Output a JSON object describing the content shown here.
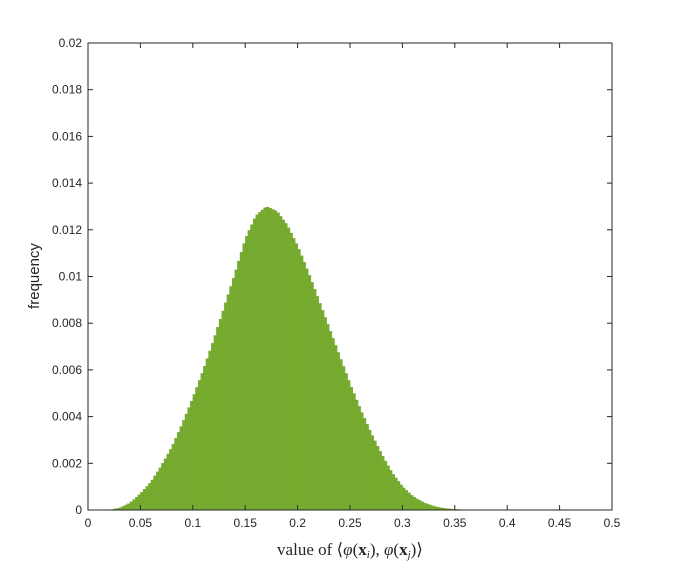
{
  "chart_data": {
    "type": "bar",
    "title": "",
    "ylabel": "frequency",
    "xlabel": {
      "prefix": "value of ",
      "lang": "⟨",
      "phi": "φ",
      "x": "x",
      "sub_i": "i",
      "sub_j": "j",
      "open": "(",
      "close": ")",
      "comma": ", ",
      "rang": "⟩"
    },
    "xlim": [
      0,
      0.5
    ],
    "ylim": [
      0,
      0.02
    ],
    "xticks": [
      "0",
      "0.05",
      "0.1",
      "0.15",
      "0.2",
      "0.25",
      "0.3",
      "0.35",
      "0.4",
      "0.45",
      "0.5"
    ],
    "yticks": [
      "0",
      "0.002",
      "0.004",
      "0.006",
      "0.008",
      "0.01",
      "0.012",
      "0.014",
      "0.016",
      "0.018",
      "0.02"
    ],
    "bar_color": "#77ac30",
    "distribution": {
      "x": [
        0.0,
        0.02,
        0.03,
        0.04,
        0.05,
        0.06,
        0.07,
        0.08,
        0.09,
        0.1,
        0.11,
        0.12,
        0.13,
        0.14,
        0.15,
        0.16,
        0.17,
        0.18,
        0.19,
        0.2,
        0.21,
        0.22,
        0.23,
        0.24,
        0.25,
        0.26,
        0.27,
        0.28,
        0.29,
        0.3,
        0.31,
        0.32,
        0.33,
        0.34,
        0.35,
        0.36,
        0.37,
        0.38,
        0.4,
        0.45,
        0.5
      ],
      "y": [
        0,
        0,
        8e-05,
        0.0003,
        0.0007,
        0.0012,
        0.0019,
        0.0027,
        0.0037,
        0.0048,
        0.006,
        0.0073,
        0.0087,
        0.0101,
        0.0116,
        0.0126,
        0.013,
        0.0128,
        0.0122,
        0.0113,
        0.0102,
        0.009,
        0.0078,
        0.0066,
        0.0054,
        0.0043,
        0.0033,
        0.0024,
        0.0016,
        0.001,
        0.00058,
        0.00032,
        0.00016,
        7e-05,
        3e-05,
        1e-05,
        4e-06,
        0,
        0,
        0,
        0
      ]
    }
  }
}
